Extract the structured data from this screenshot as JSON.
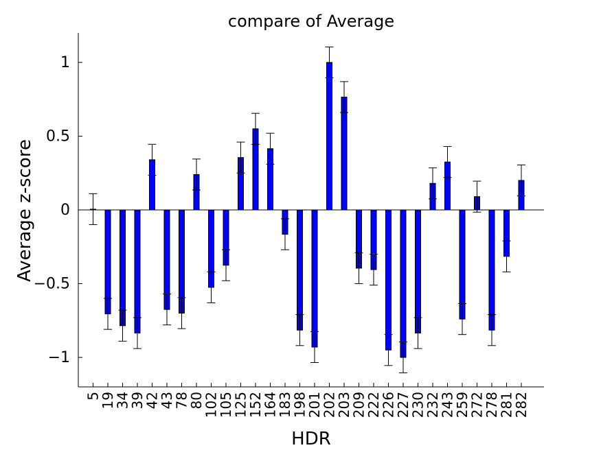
{
  "chart_data": {
    "type": "bar",
    "title": "compare of Average",
    "xlabel": "HDR",
    "ylabel": "Average z-score",
    "ylim": [
      -1.2,
      1.2
    ],
    "yticks": [
      -1,
      -0.5,
      0,
      0.5,
      1
    ],
    "ytick_labels": [
      "−1",
      "−0.5",
      "0",
      "0.5",
      "1"
    ],
    "categories": [
      "5",
      "19",
      "34",
      "39",
      "42",
      "43",
      "78",
      "80",
      "102",
      "105",
      "125",
      "152",
      "164",
      "183",
      "198",
      "201",
      "202",
      "203",
      "209",
      "222",
      "226",
      "227",
      "230",
      "232",
      "243",
      "259",
      "272",
      "278",
      "281",
      "282"
    ],
    "values": [
      0.005,
      -0.705,
      -0.785,
      -0.835,
      0.34,
      -0.675,
      -0.7,
      0.24,
      -0.525,
      -0.375,
      0.355,
      0.55,
      0.415,
      -0.165,
      -0.815,
      -0.93,
      1.0,
      0.765,
      -0.395,
      -0.405,
      -0.95,
      -1.0,
      -0.835,
      0.18,
      0.325,
      -0.74,
      0.09,
      -0.815,
      -0.315,
      0.2
    ],
    "error": 0.105,
    "bar_color": "#0000ff",
    "grid": false,
    "legend": "none"
  }
}
